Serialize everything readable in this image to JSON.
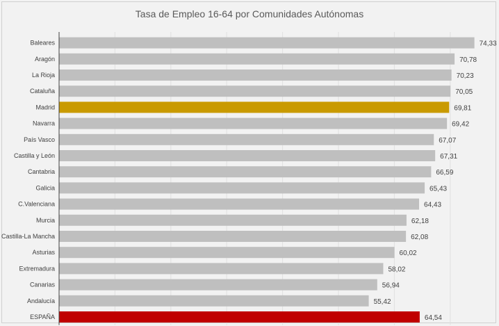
{
  "chart_data": {
    "type": "bar",
    "orientation": "horizontal",
    "title": "Tasa de Empleo 16-64 por Comunidades  Autónomas",
    "categories": [
      "Baleares",
      "Aragón",
      "La Rioja",
      "Cataluña",
      "Madrid",
      "Navarra",
      "País Vasco",
      "Castilla y León",
      "Cantabria",
      "Galicia",
      "C.Valenciana",
      "Murcia",
      "Castilla-La Mancha",
      "Asturias",
      "Extremadura",
      "Canarias",
      "Andalucía",
      "ESPAÑA"
    ],
    "values": [
      74.33,
      70.78,
      70.23,
      70.05,
      69.81,
      69.42,
      67.07,
      67.31,
      66.59,
      65.43,
      64.43,
      62.18,
      62.08,
      60.02,
      58.02,
      56.94,
      55.42,
      64.54
    ],
    "value_labels": [
      "74,33",
      "70,78",
      "70,23",
      "70,05",
      "69,81",
      "69,42",
      "67,07",
      "67,31",
      "66,59",
      "65,43",
      "64,43",
      "62,18",
      "62,08",
      "60,02",
      "58,02",
      "56,94",
      "55,42",
      "64,54"
    ],
    "colors": {
      "default": "#bfbfbf",
      "Madrid": "#c99a00",
      "ESPAÑA": "#c00000"
    },
    "grid": true,
    "legend": "none"
  }
}
